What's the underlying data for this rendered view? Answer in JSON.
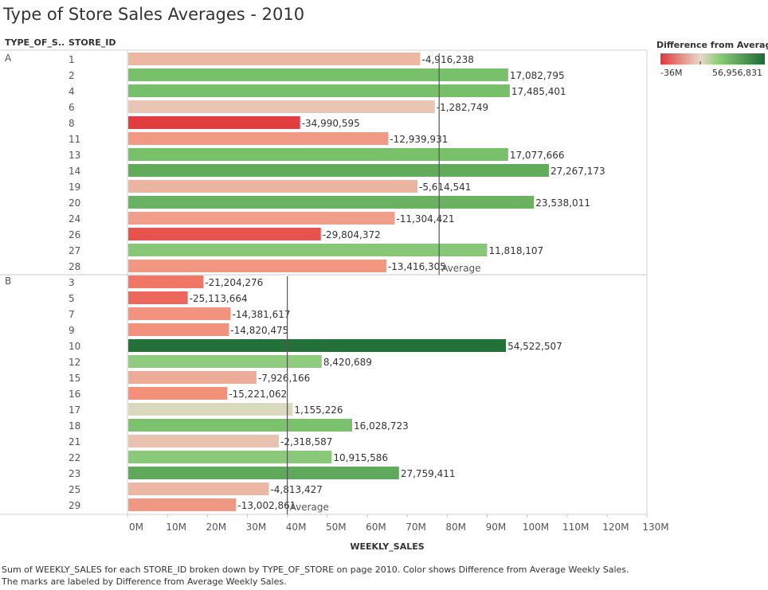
{
  "title": "Type of Store Sales Averages - 2010",
  "headers": {
    "type": "TYPE_OF_S..",
    "store": "STORE_ID"
  },
  "legend": {
    "title": "Difference from Averag..",
    "min_label": "-36M",
    "max_label": "56,956,831",
    "colors": {
      "min": "#e0393e",
      "mid": "#e9d9c8",
      "max": "#1d6b35"
    }
  },
  "caption_lines": [
    "Sum of WEEKLY_SALES for each STORE_ID broken down by TYPE_OF_STORE on page 2010.  Color shows Difference from Average Weekly Sales.",
    "The marks are labeled by Difference from Average Weekly Sales."
  ],
  "chart_data": {
    "type": "bar",
    "orientation": "horizontal",
    "xlabel": "WEEKLY_SALES",
    "xlim": [
      0,
      130000000
    ],
    "x_ticks": [
      "0M",
      "10M",
      "20M",
      "30M",
      "40M",
      "50M",
      "60M",
      "70M",
      "80M",
      "90M",
      "100M",
      "110M",
      "120M",
      "130M"
    ],
    "reference_line_label": "Average",
    "groups": [
      {
        "type": "A",
        "average": 78,
        "stores": [
          {
            "id": "1",
            "label": "-4,916,238",
            "diff": -4916238
          },
          {
            "id": "2",
            "label": "17,082,795",
            "diff": 17082795
          },
          {
            "id": "4",
            "label": "17,485,401",
            "diff": 17485401
          },
          {
            "id": "6",
            "label": "-1,282,749",
            "diff": -1282749
          },
          {
            "id": "8",
            "label": "-34,990,595",
            "diff": -34990595
          },
          {
            "id": "11",
            "label": "-12,939,931",
            "diff": -12939931
          },
          {
            "id": "13",
            "label": "17,077,666",
            "diff": 17077666
          },
          {
            "id": "14",
            "label": "27,267,173",
            "diff": 27267173
          },
          {
            "id": "19",
            "label": "-5,614,541",
            "diff": -5614541
          },
          {
            "id": "20",
            "label": "23,538,011",
            "diff": 23538011
          },
          {
            "id": "24",
            "label": "-11,304,421",
            "diff": -11304421
          },
          {
            "id": "26",
            "label": "-29,804,372",
            "diff": -29804372
          },
          {
            "id": "27",
            "label": "11,818,107",
            "diff": 11818107
          },
          {
            "id": "28",
            "label": "-13,416,305",
            "diff": -13416305
          }
        ]
      },
      {
        "type": "B",
        "average": 40,
        "stores": [
          {
            "id": "3",
            "label": "-21,204,276",
            "diff": -21204276
          },
          {
            "id": "5",
            "label": "-25,113,664",
            "diff": -25113664
          },
          {
            "id": "7",
            "label": "-14,381,617",
            "diff": -14381617
          },
          {
            "id": "9",
            "label": "-14,820,475",
            "diff": -14820475
          },
          {
            "id": "10",
            "label": "54,522,507",
            "diff": 54522507
          },
          {
            "id": "12",
            "label": "8,420,689",
            "diff": 8420689
          },
          {
            "id": "15",
            "label": "-7,926,166",
            "diff": -7926166
          },
          {
            "id": "16",
            "label": "-15,221,062",
            "diff": -15221062
          },
          {
            "id": "17",
            "label": "1,155,226",
            "diff": 1155226
          },
          {
            "id": "18",
            "label": "16,028,723",
            "diff": 16028723
          },
          {
            "id": "21",
            "label": "-2,318,587",
            "diff": -2318587
          },
          {
            "id": "22",
            "label": "10,915,586",
            "diff": 10915586
          },
          {
            "id": "23",
            "label": "27,759,411",
            "diff": 27759411
          },
          {
            "id": "25",
            "label": "-4,813,427",
            "diff": -4813427
          },
          {
            "id": "29",
            "label": "-13,002,861",
            "diff": -13002861
          }
        ]
      }
    ]
  }
}
